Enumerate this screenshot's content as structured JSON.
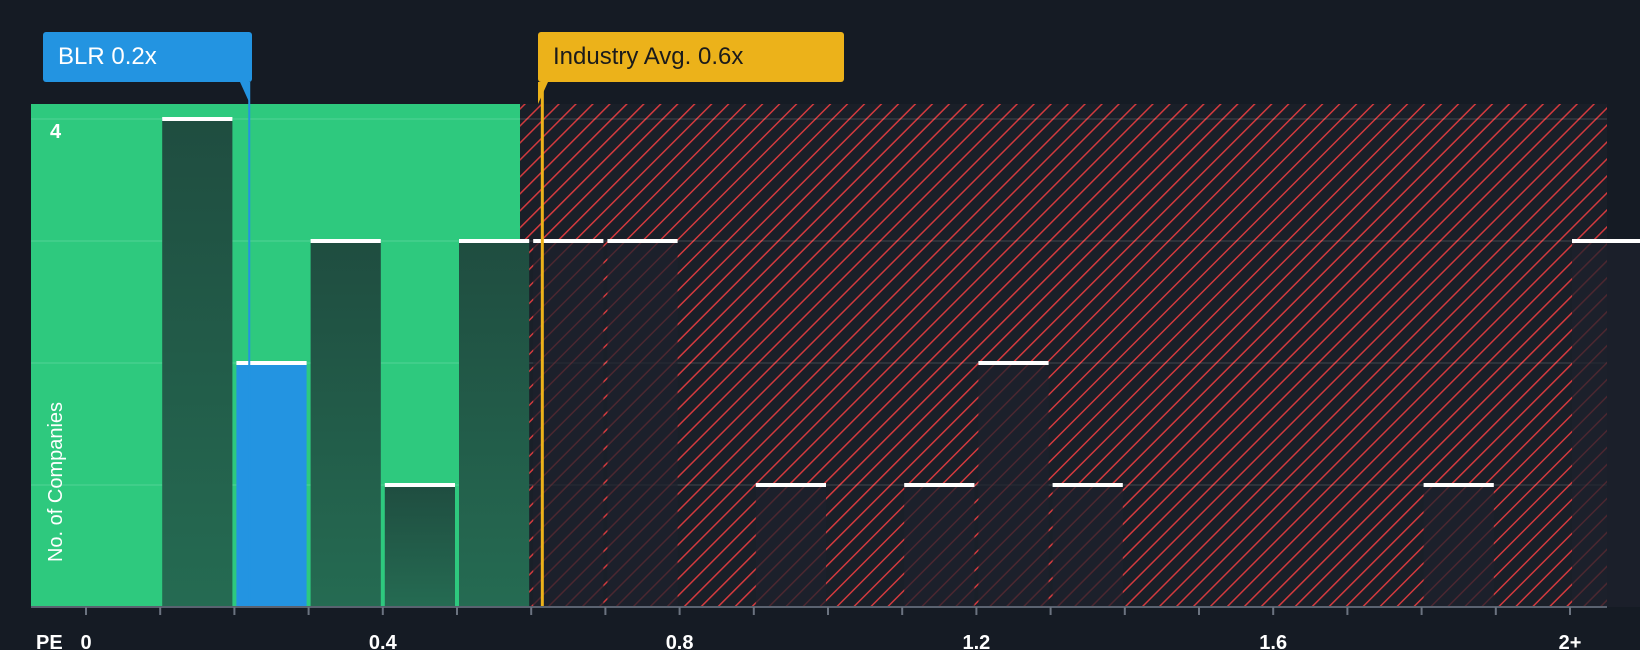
{
  "chart_data": {
    "type": "bar",
    "title": "",
    "xlabel": "PE",
    "ylabel": "No. of Companies",
    "ylim": [
      0,
      4
    ],
    "ytick_labels": [
      {
        "value": 4,
        "label": "4"
      }
    ],
    "xlim": [
      -0.1,
      2.05
    ],
    "xtick_labels": [
      {
        "value": 0,
        "label": "0"
      },
      {
        "value": 0.4,
        "label": "0.4"
      },
      {
        "value": 0.8,
        "label": "0.8"
      },
      {
        "value": 1.2,
        "label": "1.2"
      },
      {
        "value": 1.6,
        "label": "1.6"
      },
      {
        "value": 2.0,
        "label": "2+"
      }
    ],
    "bin_width": 0.1,
    "bins": [
      {
        "start": 0.1,
        "count": 4
      },
      {
        "start": 0.2,
        "count": 2,
        "highlight": true
      },
      {
        "start": 0.3,
        "count": 3
      },
      {
        "start": 0.4,
        "count": 1
      },
      {
        "start": 0.5,
        "count": 3
      },
      {
        "start": 0.6,
        "count": 3
      },
      {
        "start": 0.7,
        "count": 3
      },
      {
        "start": 0.9,
        "count": 1
      },
      {
        "start": 1.1,
        "count": 1
      },
      {
        "start": 1.2,
        "count": 2
      },
      {
        "start": 1.3,
        "count": 1
      },
      {
        "start": 1.8,
        "count": 1
      },
      {
        "start": 2.0,
        "count": 3
      }
    ],
    "company": {
      "name": "BLR",
      "value": 0.22,
      "label": "BLR 0.2x"
    },
    "industry_avg": {
      "value": 0.615,
      "label": "Industry Avg. 0.6x"
    },
    "fair_zone_end": 0.585
  },
  "colors": {
    "background": "#151b24",
    "green_zone": "#2ec97e",
    "bar_dark": "#1f4d40",
    "bar_highlight": "#2394e1",
    "bar_cap": "#ffffff",
    "hatch": "#d23a3e",
    "industry": "#ecb21a",
    "axis_text": "#ffffff"
  }
}
